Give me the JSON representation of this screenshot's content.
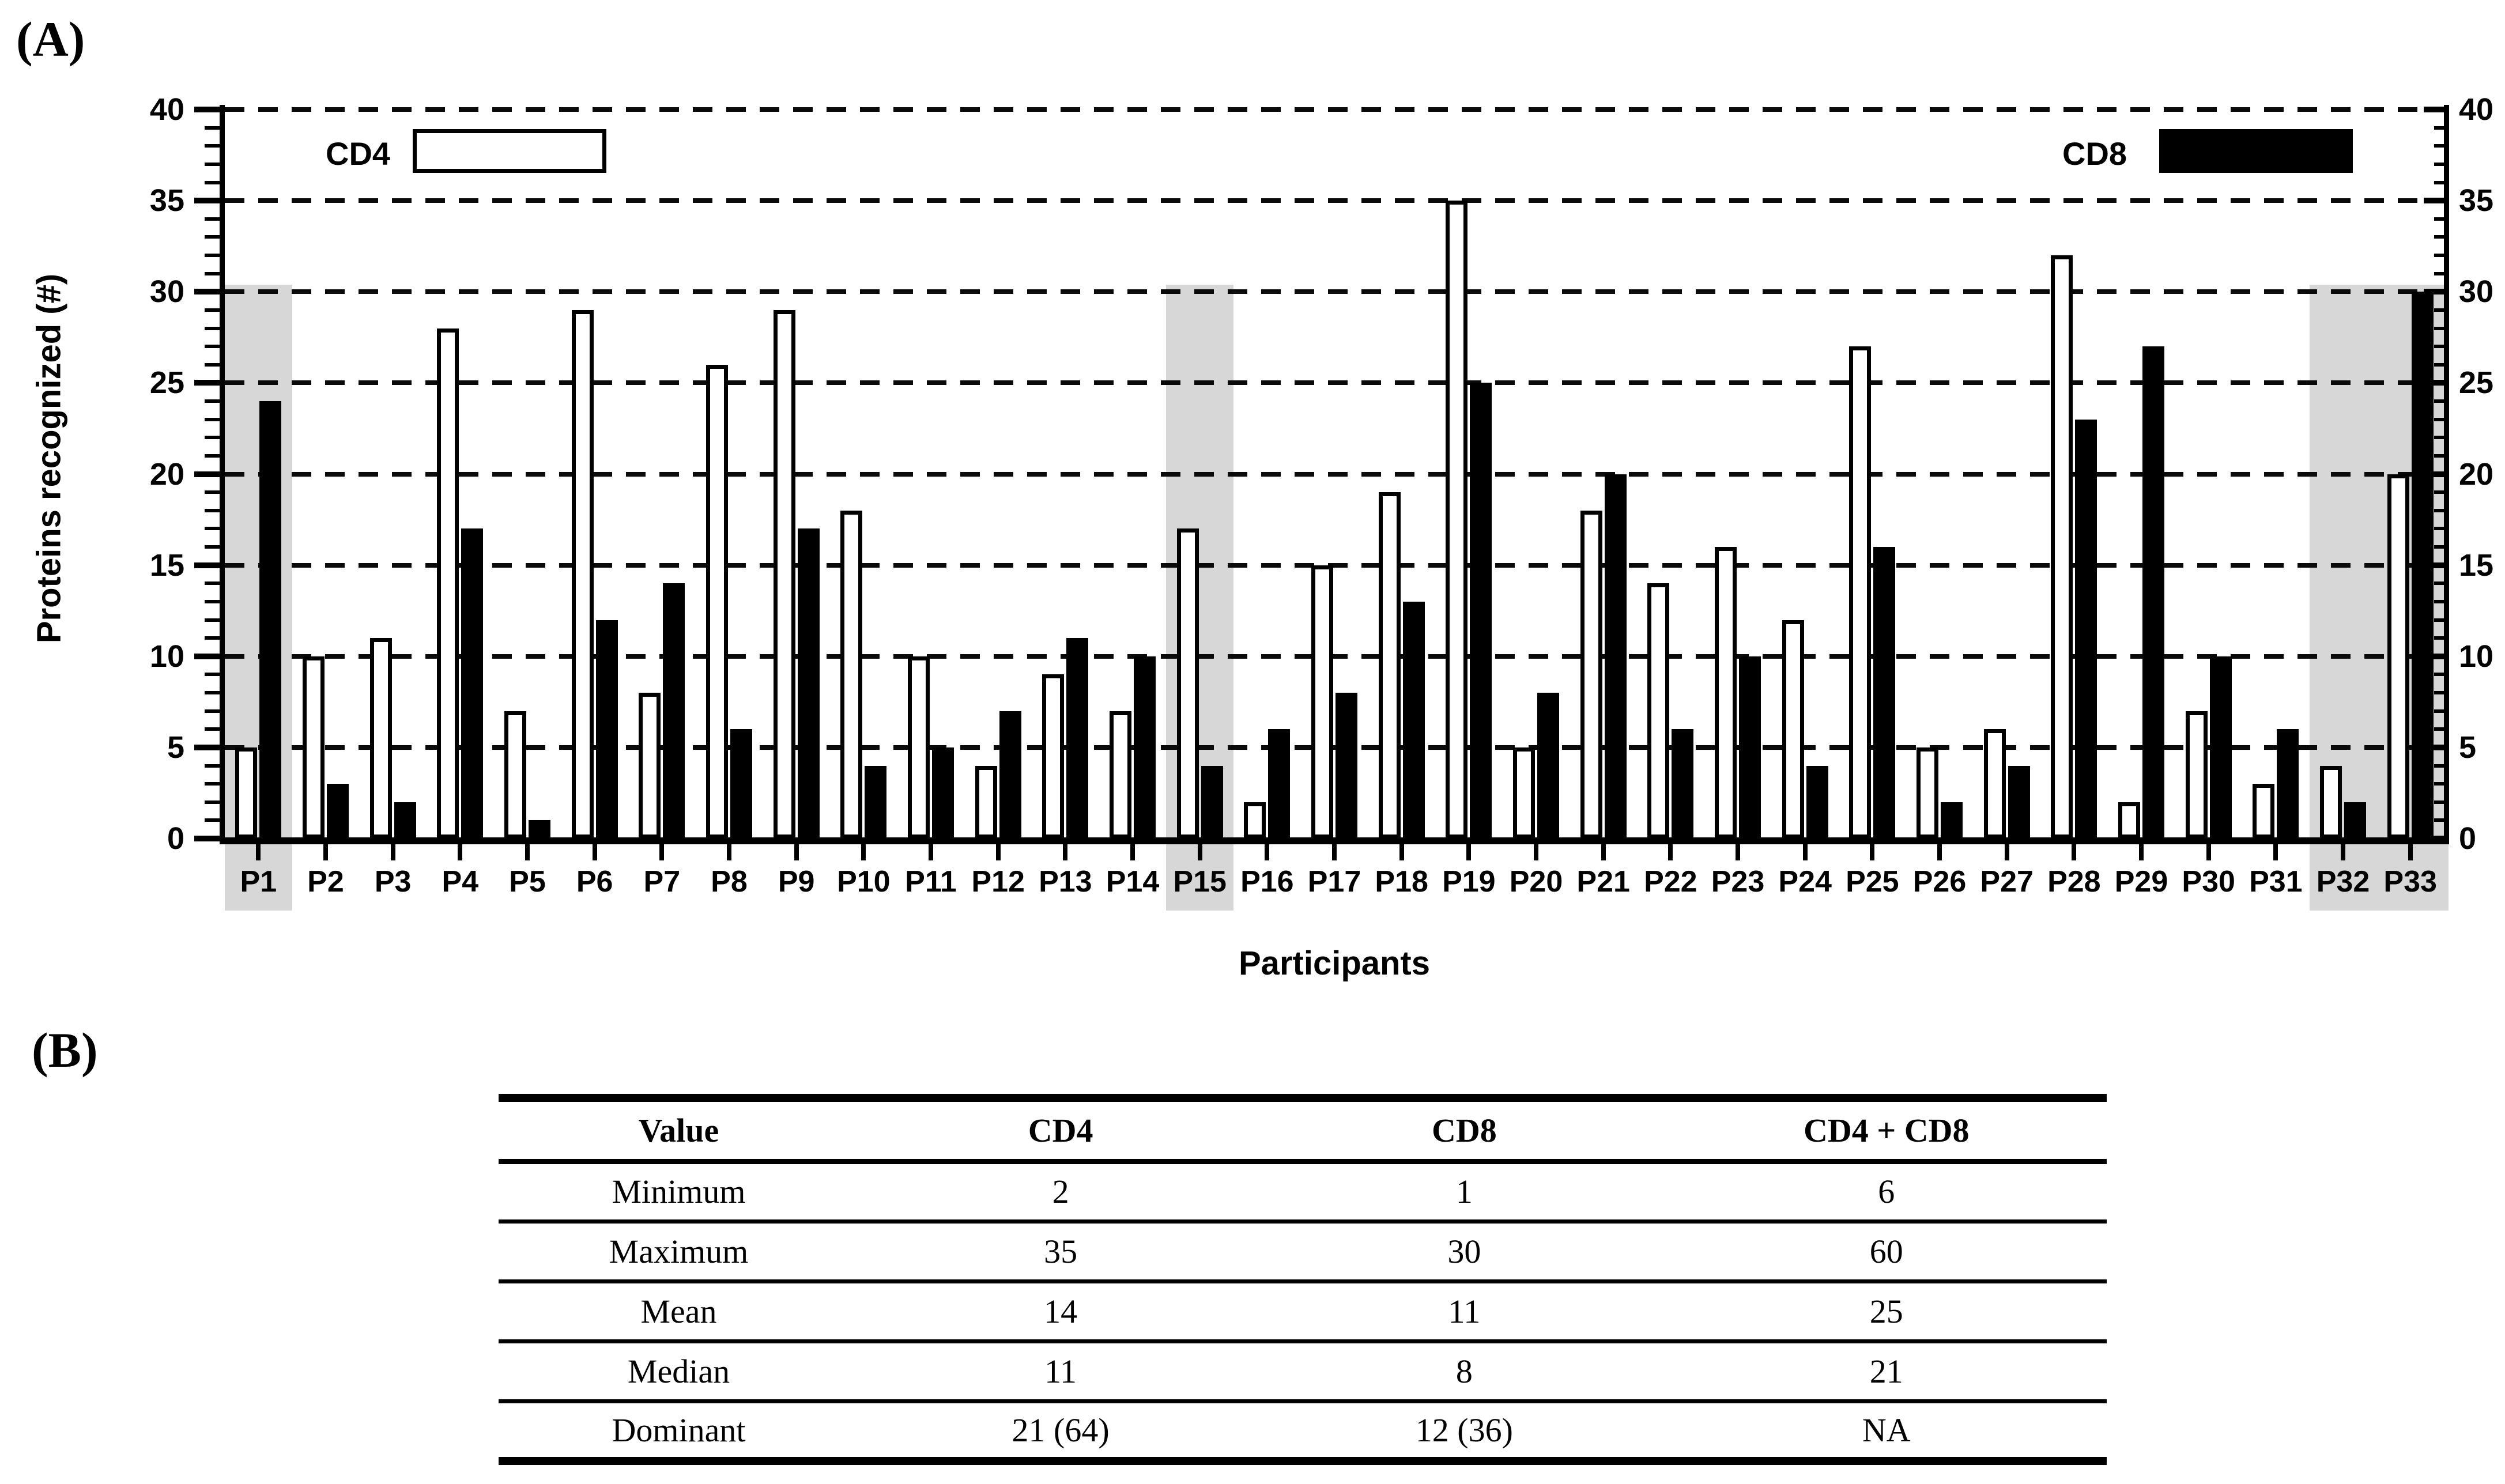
{
  "panel_a": {
    "label": "(A)",
    "y_axis_title": "Proteins recognized (#)",
    "x_axis_title": "Participants",
    "legend": {
      "cd4_label": "CD4",
      "cd8_label": "CD8"
    }
  },
  "chart_data": {
    "type": "bar",
    "title": "",
    "xlabel": "Participants",
    "ylabel": "Proteins recognized (#)",
    "ylim": [
      0,
      40
    ],
    "y_ticks": [
      0,
      5,
      10,
      15,
      20,
      25,
      30,
      35,
      40
    ],
    "grid": "horizontal dashed every 5, duplicate y-axis on right",
    "legend_position": "top (CD4 left, CD8 right)",
    "categories": [
      "P1",
      "P2",
      "P3",
      "P4",
      "P5",
      "P6",
      "P7",
      "P8",
      "P9",
      "P10",
      "P11",
      "P12",
      "P13",
      "P14",
      "P15",
      "P16",
      "P17",
      "P18",
      "P19",
      "P20",
      "P21",
      "P22",
      "P23",
      "P24",
      "P25",
      "P26",
      "P27",
      "P28",
      "P29",
      "P30",
      "P31",
      "P32",
      "P33"
    ],
    "series": [
      {
        "name": "CD4",
        "values": [
          5,
          10,
          11,
          28,
          7,
          29,
          8,
          26,
          29,
          18,
          10,
          4,
          9,
          7,
          17,
          2,
          15,
          19,
          35,
          5,
          18,
          14,
          16,
          12,
          27,
          5,
          6,
          32,
          2,
          7,
          3,
          4,
          20
        ]
      },
      {
        "name": "CD8",
        "values": [
          24,
          3,
          2,
          17,
          1,
          12,
          14,
          6,
          17,
          4,
          5,
          7,
          11,
          10,
          4,
          6,
          8,
          13,
          25,
          8,
          20,
          6,
          10,
          4,
          16,
          2,
          4,
          23,
          27,
          10,
          6,
          2,
          30
        ]
      }
    ],
    "highlight_bands": [
      [
        "P1"
      ],
      [
        "P15"
      ],
      [
        "P32",
        "P33"
      ]
    ]
  },
  "panel_b": {
    "label": "(B)",
    "table": {
      "headers": [
        "Value",
        "CD4",
        "CD8",
        "CD4 + CD8"
      ],
      "rows": [
        [
          "Minimum",
          "2",
          "1",
          "6"
        ],
        [
          "Maximum",
          "35",
          "30",
          "60"
        ],
        [
          "Mean",
          "14",
          "11",
          "25"
        ],
        [
          "Median",
          "11",
          "8",
          "21"
        ],
        [
          "Dominant",
          "21 (64)",
          "12 (36)",
          "NA"
        ]
      ]
    }
  },
  "colors": {
    "cd4_bar": "#ffffff",
    "cd8_bar": "#000000",
    "bar_border": "#000000",
    "highlight_band": "#d7d7d7",
    "gridline": "#0a0a0a",
    "text": "#000000",
    "background": "#ffffff"
  }
}
